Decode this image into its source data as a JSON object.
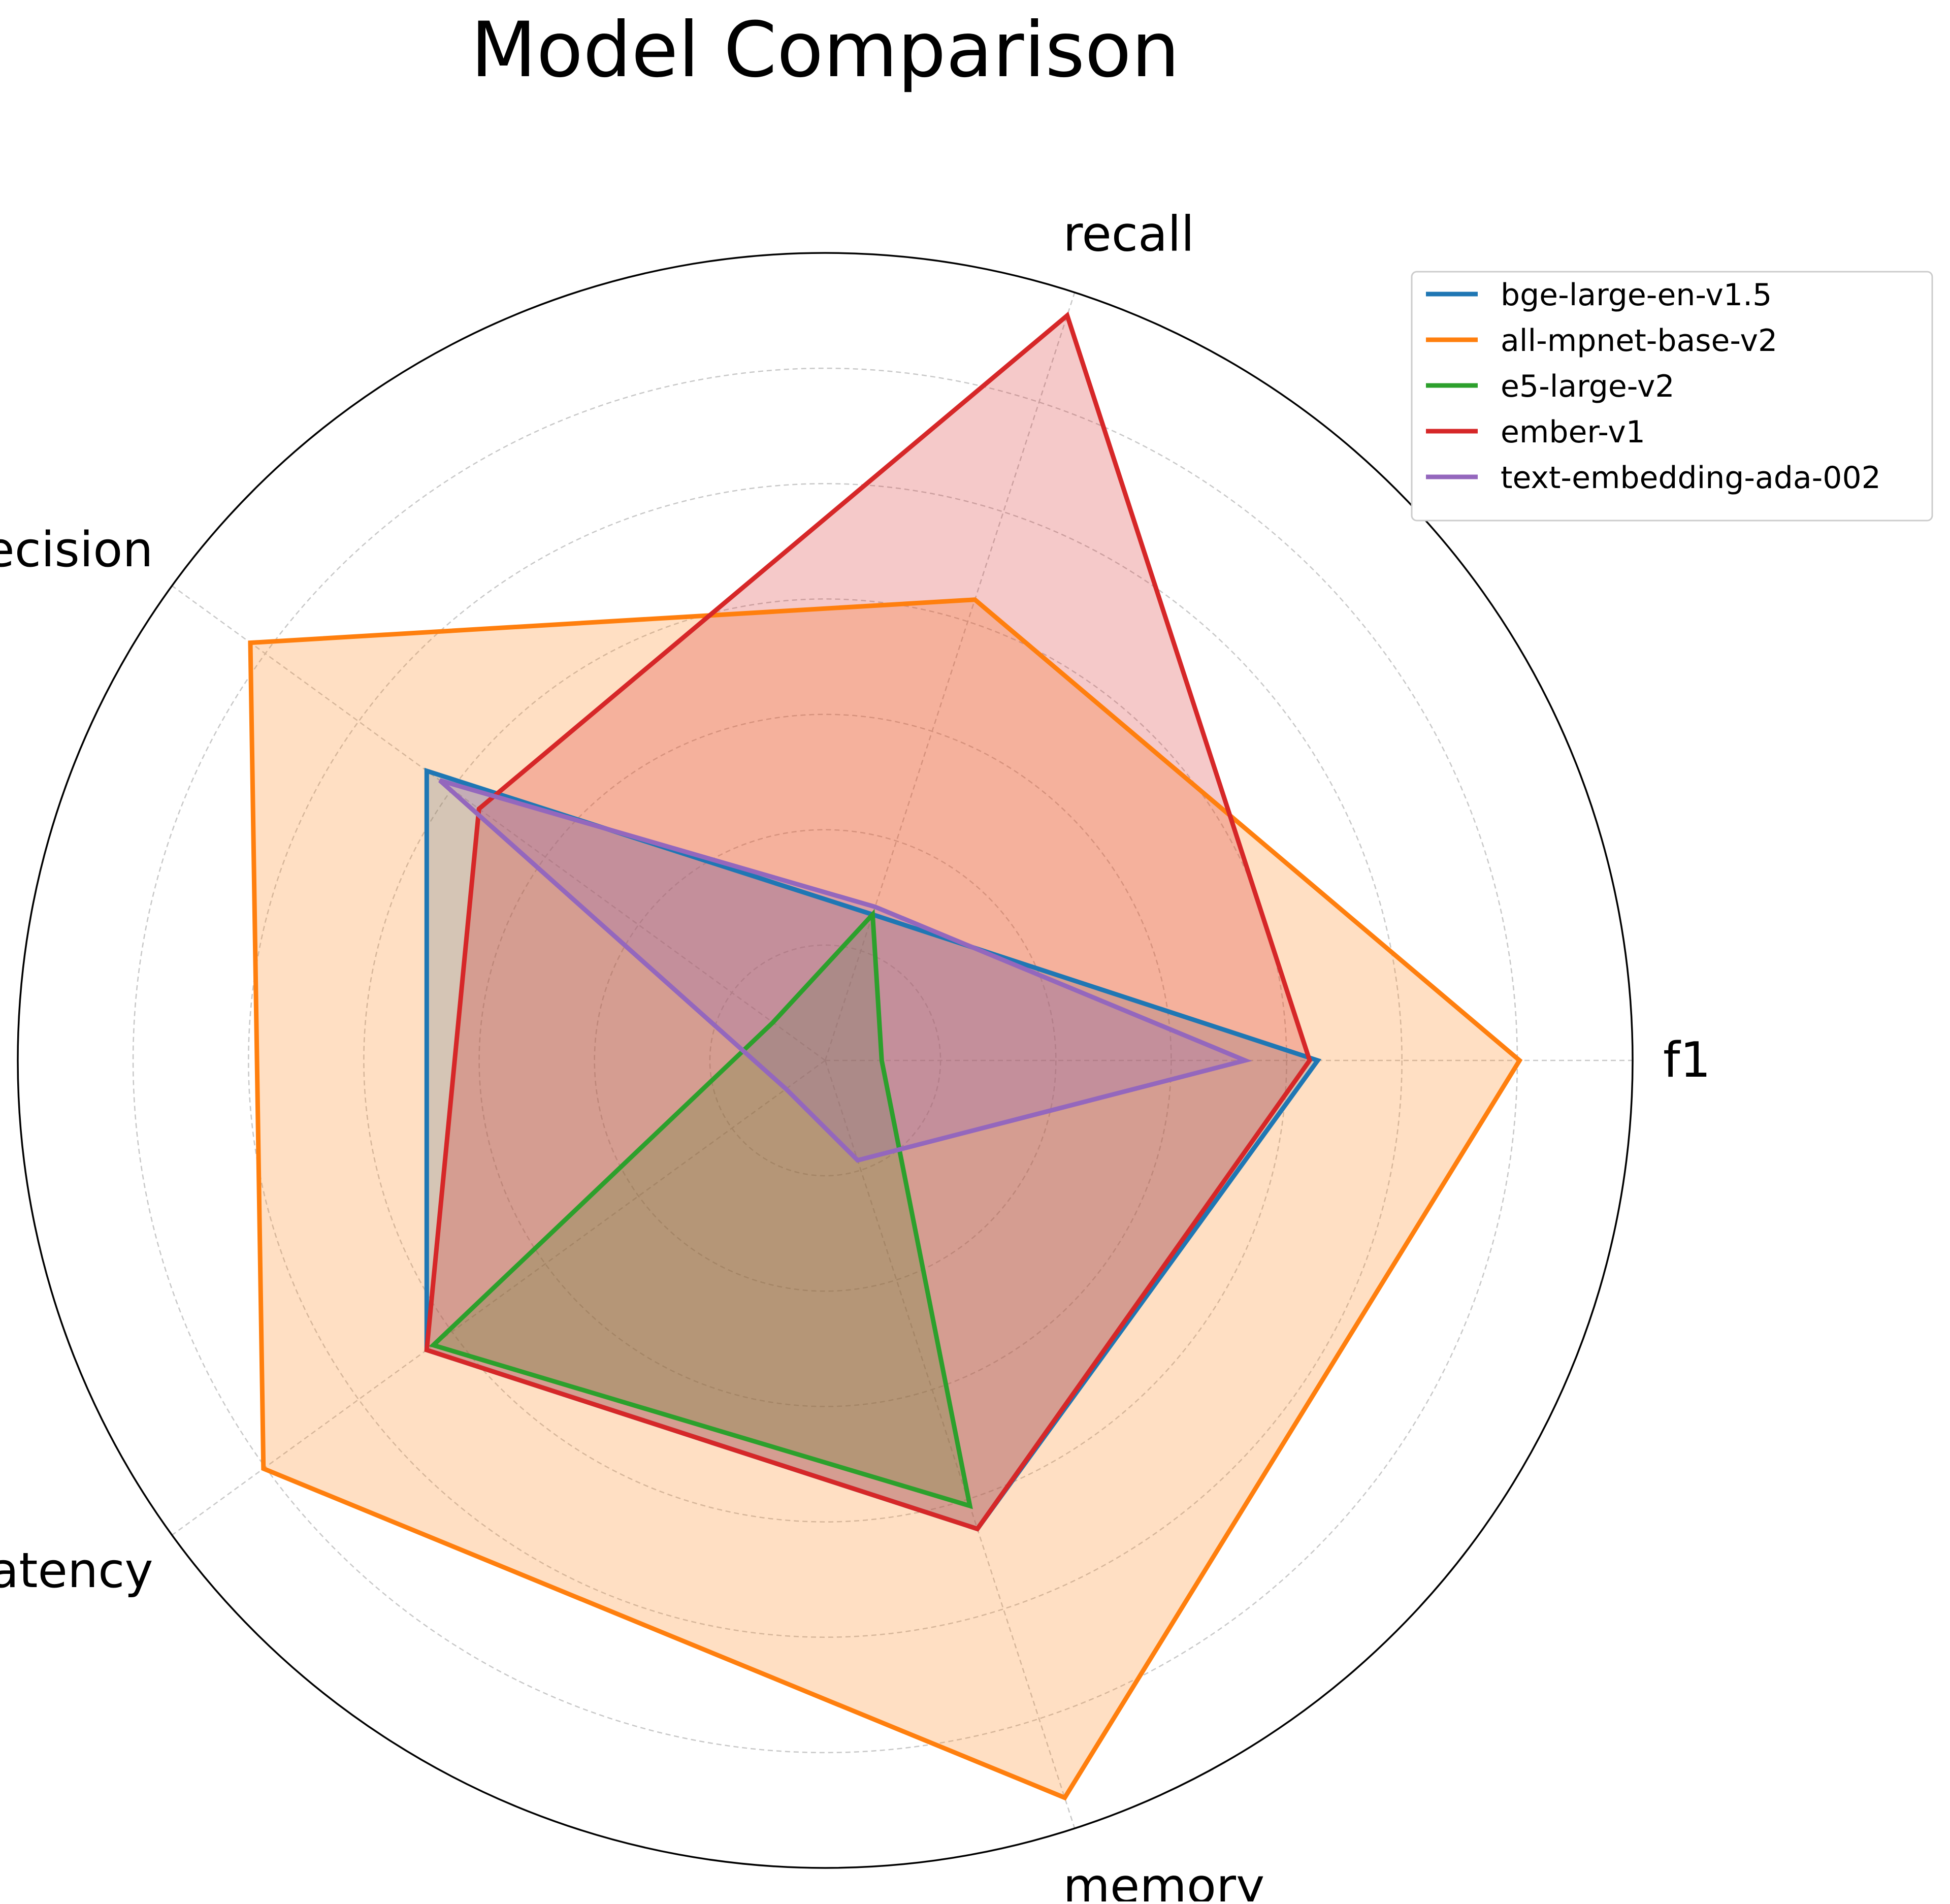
{
  "chart_data": {
    "type": "radar",
    "title": "Model Comparison",
    "axes": [
      "f1",
      "recall",
      "precision",
      "latency",
      "memory"
    ],
    "rlim": [
      0,
      1
    ],
    "grid": true,
    "legend_position": "top-right",
    "series": [
      {
        "name": "bge-large-en-v1.5",
        "color": "#1f77b4",
        "values": [
          0.61,
          0.19,
          0.61,
          0.61,
          0.61
        ]
      },
      {
        "name": "all-mpnet-base-v2",
        "color": "#ff7f0e",
        "values": [
          0.86,
          0.6,
          0.88,
          0.86,
          0.96
        ]
      },
      {
        "name": "e5-large-v2",
        "color": "#2ca02c",
        "values": [
          0.07,
          0.19,
          0.08,
          0.6,
          0.58
        ]
      },
      {
        "name": "ember-v1",
        "color": "#d62728",
        "values": [
          0.6,
          0.97,
          0.53,
          0.61,
          0.61
        ]
      },
      {
        "name": "text-embedding-ada-002",
        "color": "#9467bd",
        "values": [
          0.52,
          0.2,
          0.59,
          0.06,
          0.13
        ]
      }
    ]
  }
}
